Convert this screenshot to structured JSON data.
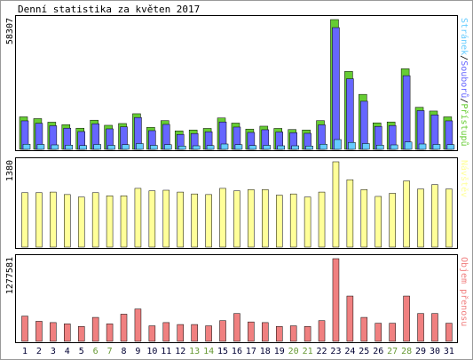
{
  "title": "Denní statistika za květen 2017",
  "colors": {
    "hits": "#66cc33",
    "files": "#6666ff",
    "pages": "#66ccff",
    "visits": "#ffff99",
    "volume": "#f08080",
    "weekend_label": "#669933",
    "weekday_label": "#000033",
    "frame": "#000000"
  },
  "chart_data": [
    {
      "type": "bar",
      "panel": "traffic",
      "max_label": "58307",
      "ylim": [
        0,
        58307
      ],
      "right_legend": [
        {
          "text": "Stránek",
          "color_key": "pages"
        },
        {
          "text": "/",
          "color_key": "frame"
        },
        {
          "text": "Souborů",
          "color_key": "files"
        },
        {
          "text": "/",
          "color_key": "frame"
        },
        {
          "text": "Přístupů",
          "color_key": "hits"
        }
      ],
      "categories": [
        "1",
        "2",
        "3",
        "4",
        "5",
        "6",
        "7",
        "8",
        "9",
        "10",
        "11",
        "12",
        "13",
        "14",
        "15",
        "16",
        "17",
        "18",
        "19",
        "20",
        "21",
        "22",
        "23",
        "24",
        "25",
        "26",
        "27",
        "28",
        "29",
        "30",
        "31"
      ],
      "series": [
        {
          "name": "Přístupů",
          "color_key": "hits",
          "values": [
            14600,
            13800,
            12200,
            11100,
            9500,
            13100,
            10800,
            11600,
            16000,
            9900,
            12900,
            8300,
            8700,
            9400,
            14100,
            11800,
            9100,
            10400,
            9400,
            8900,
            8700,
            12900,
            58307,
            35000,
            24700,
            11900,
            12300,
            36200,
            18900,
            17200,
            14600
          ]
        },
        {
          "name": "Souborů",
          "color_key": "files",
          "values": [
            12800,
            11700,
            10600,
            9500,
            8000,
            11500,
            9200,
            10100,
            14300,
            8400,
            11200,
            6700,
            7100,
            7900,
            12300,
            10000,
            7600,
            8800,
            7800,
            7500,
            7200,
            11000,
            54700,
            31700,
            21600,
            10300,
            10700,
            33100,
            17400,
            15500,
            12800
          ]
        },
        {
          "name": "Stránek",
          "color_key": "pages",
          "values": [
            2300,
            2200,
            2000,
            1900,
            1700,
            2200,
            1800,
            2100,
            2600,
            1800,
            2100,
            1500,
            1600,
            1700,
            2400,
            2100,
            1700,
            1800,
            1600,
            1600,
            1500,
            2300,
            4400,
            3100,
            2600,
            1900,
            2000,
            3300,
            2400,
            2200,
            2100
          ]
        }
      ]
    },
    {
      "type": "bar",
      "panel": "visits",
      "max_label": "1380",
      "ylim": [
        0,
        1380
      ],
      "right_legend": [
        {
          "text": "Návštěv",
          "color_key": "visits"
        }
      ],
      "categories": [
        "1",
        "2",
        "3",
        "4",
        "5",
        "6",
        "7",
        "8",
        "9",
        "10",
        "11",
        "12",
        "13",
        "14",
        "15",
        "16",
        "17",
        "18",
        "19",
        "20",
        "21",
        "22",
        "23",
        "24",
        "25",
        "26",
        "27",
        "28",
        "29",
        "30",
        "31"
      ],
      "series": [
        {
          "name": "Návštěv",
          "color_key": "visits",
          "values": [
            880,
            880,
            890,
            850,
            810,
            880,
            830,
            830,
            950,
            910,
            920,
            890,
            860,
            850,
            950,
            910,
            930,
            930,
            840,
            860,
            810,
            890,
            1380,
            1090,
            930,
            820,
            870,
            1070,
            940,
            1010,
            940
          ]
        }
      ]
    },
    {
      "type": "bar",
      "panel": "volume",
      "max_label": "1277581",
      "ylim": [
        0,
        1277581
      ],
      "right_legend": [
        {
          "text": "Objem přenosu",
          "color_key": "volume"
        }
      ],
      "categories": [
        "1",
        "2",
        "3",
        "4",
        "5",
        "6",
        "7",
        "8",
        "9",
        "10",
        "11",
        "12",
        "13",
        "14",
        "15",
        "16",
        "17",
        "18",
        "19",
        "20",
        "21",
        "22",
        "23",
        "24",
        "25",
        "26",
        "27",
        "28",
        "29",
        "30",
        "31"
      ],
      "series": [
        {
          "name": "Objem přenosu",
          "color_key": "volume",
          "values": [
            390000,
            310000,
            290000,
            270000,
            230000,
            370000,
            270000,
            420000,
            500000,
            240000,
            290000,
            260000,
            260000,
            240000,
            320000,
            430000,
            300000,
            290000,
            230000,
            240000,
            230000,
            320000,
            1277581,
            700000,
            370000,
            280000,
            280000,
            700000,
            430000,
            430000,
            280000
          ]
        }
      ]
    }
  ],
  "x_labels": [
    {
      "text": "1",
      "weekend": false
    },
    {
      "text": "2",
      "weekend": false
    },
    {
      "text": "3",
      "weekend": false
    },
    {
      "text": "4",
      "weekend": false
    },
    {
      "text": "5",
      "weekend": false
    },
    {
      "text": "6",
      "weekend": true
    },
    {
      "text": "7",
      "weekend": true
    },
    {
      "text": "8",
      "weekend": false
    },
    {
      "text": "9",
      "weekend": false
    },
    {
      "text": "10",
      "weekend": false
    },
    {
      "text": "11",
      "weekend": false
    },
    {
      "text": "12",
      "weekend": false
    },
    {
      "text": "13",
      "weekend": true
    },
    {
      "text": "14",
      "weekend": true
    },
    {
      "text": "15",
      "weekend": false
    },
    {
      "text": "16",
      "weekend": false
    },
    {
      "text": "17",
      "weekend": false
    },
    {
      "text": "18",
      "weekend": false
    },
    {
      "text": "19",
      "weekend": false
    },
    {
      "text": "20",
      "weekend": true
    },
    {
      "text": "21",
      "weekend": true
    },
    {
      "text": "22",
      "weekend": false
    },
    {
      "text": "23",
      "weekend": false
    },
    {
      "text": "24",
      "weekend": false
    },
    {
      "text": "25",
      "weekend": false
    },
    {
      "text": "26",
      "weekend": false
    },
    {
      "text": "27",
      "weekend": true
    },
    {
      "text": "28",
      "weekend": true
    },
    {
      "text": "29",
      "weekend": false
    },
    {
      "text": "30",
      "weekend": false
    },
    {
      "text": "31",
      "weekend": false
    }
  ]
}
